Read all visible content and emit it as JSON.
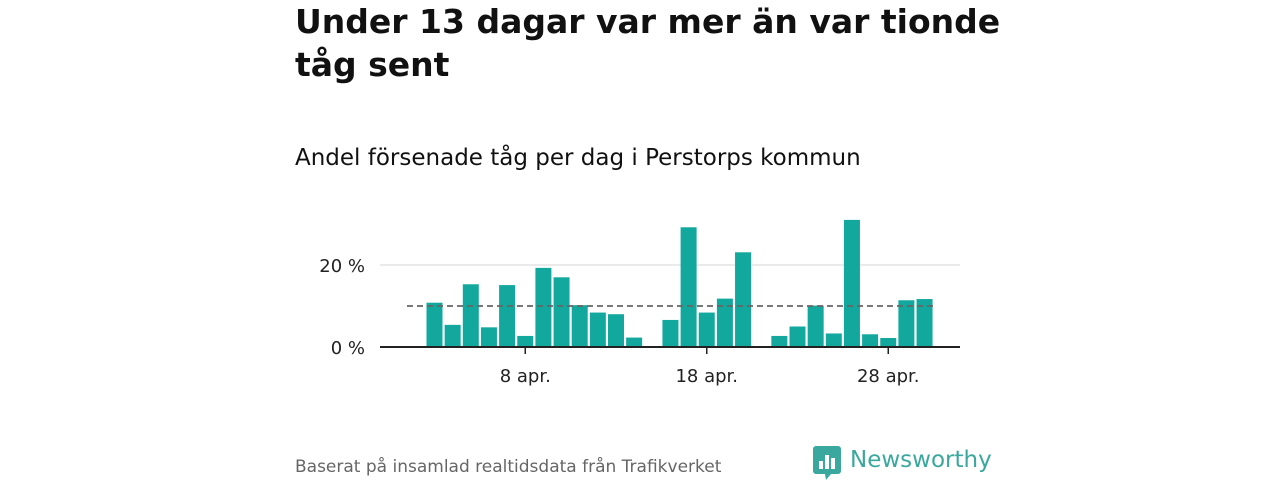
{
  "title": "Under 13 dagar var mer än var tionde tåg sent",
  "subtitle": "Andel försenade tåg per dag i Perstorps kommun",
  "footer": {
    "source": "Baserat på insamlad realtidsdata från Trafikverket",
    "brand": "Newsworthy"
  },
  "colors": {
    "bar": "#13a89e",
    "reference_line": "#666666",
    "gridline": "#dddddd",
    "axis": "#222222",
    "brand": "#3aa89c"
  },
  "chart_data": {
    "type": "bar",
    "title": "Andel försenade tåg per dag i Perstorps kommun",
    "xlabel": "",
    "ylabel": "",
    "x_unit": "day of April",
    "x": [
      3,
      4,
      5,
      6,
      7,
      8,
      9,
      10,
      11,
      12,
      13,
      14,
      15,
      16,
      17,
      18,
      19,
      20,
      21,
      22,
      23,
      24,
      25,
      26,
      27,
      28,
      29,
      30
    ],
    "values": [
      10.8,
      5.4,
      15.3,
      4.8,
      15.1,
      2.7,
      19.3,
      17.0,
      10.2,
      8.4,
      8.0,
      2.3,
      null,
      6.6,
      29.2,
      8.4,
      11.8,
      23.1,
      null,
      2.7,
      5.0,
      10.1,
      3.3,
      31.0,
      3.1,
      2.2,
      11.4,
      11.7
    ],
    "reference_line": {
      "value": 10,
      "style": "dashed"
    },
    "ylim": [
      0,
      32
    ],
    "y_ticks": [
      0,
      20
    ],
    "y_tick_labels": [
      "0 %",
      "20 %"
    ],
    "x_ticks": [
      8,
      18,
      28
    ],
    "x_tick_labels": [
      "8 apr.",
      "18 apr.",
      "28 apr."
    ],
    "grid": true,
    "legend": "none"
  }
}
